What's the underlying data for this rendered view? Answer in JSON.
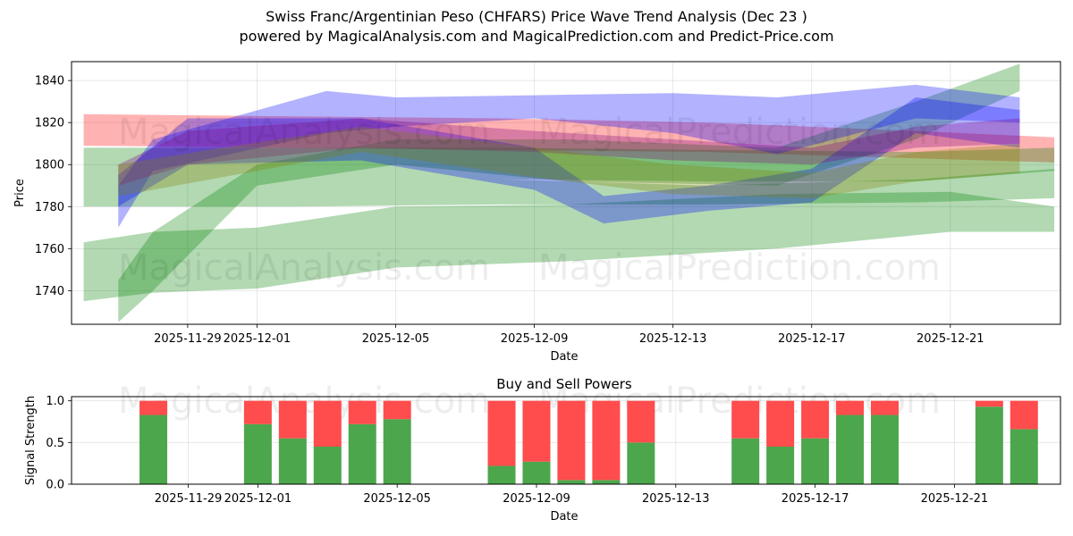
{
  "header": {
    "title_line1": "Swiss Franc/Argentinian Peso (CHFARS) Price Wave Trend Analysis (Dec 23 )",
    "title_line2": "powered by MagicalAnalysis.com and MagicalPrediction.com and Predict-Price.com"
  },
  "watermarks": {
    "magical_analysis": "MagicalAnalysis.com",
    "magical_prediction": "MagicalPrediction.com"
  },
  "chart_data": [
    {
      "type": "area",
      "title": "",
      "xlabel": "Date",
      "ylabel": "Price",
      "x_ticks": [
        "2025-11-29",
        "2025-12-01",
        "2025-12-05",
        "2025-12-09",
        "2025-12-13",
        "2025-12-17",
        "2025-12-21"
      ],
      "y_ticks": [
        1740,
        1760,
        1780,
        1800,
        1820,
        1840
      ],
      "xlim": [
        "2025-11-26",
        "2025-12-24"
      ],
      "ylim": [
        1724,
        1849
      ],
      "grid": true,
      "series": [
        {
          "name": "red band",
          "color": "#ff0000",
          "upper": [
            [
              0,
              1824
            ],
            [
              6,
              1823
            ],
            [
              12,
              1822
            ],
            [
              18,
              1820
            ],
            [
              24,
              1816
            ],
            [
              28,
              1813
            ]
          ],
          "lower": [
            [
              0,
              1809
            ],
            [
              6,
              1808
            ],
            [
              12,
              1807
            ],
            [
              18,
              1806
            ],
            [
              24,
              1803
            ],
            [
              28,
              1801
            ]
          ]
        },
        {
          "name": "green upper band",
          "color": "#008000",
          "upper": [
            [
              0,
              1808
            ],
            [
              6,
              1808
            ],
            [
              12,
              1808
            ],
            [
              18,
              1807
            ],
            [
              24,
              1806
            ],
            [
              28,
              1808
            ]
          ],
          "lower": [
            [
              0,
              1795
            ],
            [
              6,
              1794
            ],
            [
              12,
              1793
            ],
            [
              18,
              1792
            ],
            [
              24,
              1792
            ],
            [
              28,
              1797
            ]
          ]
        },
        {
          "name": "green mid band",
          "color": "#008000",
          "upper": [
            [
              0,
              1795
            ],
            [
              6,
              1794
            ],
            [
              12,
              1793
            ],
            [
              18,
              1790
            ],
            [
              24,
              1793
            ],
            [
              28,
              1798
            ]
          ],
          "lower": [
            [
              0,
              1780
            ],
            [
              6,
              1780
            ],
            [
              12,
              1781
            ],
            [
              18,
              1781
            ],
            [
              24,
              1782
            ],
            [
              28,
              1784
            ]
          ]
        },
        {
          "name": "green lower band",
          "color": "#008000",
          "upper": [
            [
              0,
              1763
            ],
            [
              2,
              1768
            ],
            [
              5,
              1770
            ],
            [
              9,
              1780
            ],
            [
              14,
              1781
            ],
            [
              20,
              1786
            ],
            [
              25,
              1787
            ],
            [
              28,
              1780
            ]
          ],
          "lower": [
            [
              0,
              1735
            ],
            [
              2,
              1739
            ],
            [
              5,
              1741
            ],
            [
              9,
              1751
            ],
            [
              14,
              1754
            ],
            [
              20,
              1760
            ],
            [
              25,
              1768
            ],
            [
              28,
              1768
            ]
          ]
        },
        {
          "name": "green rising wave",
          "color": "#008000",
          "upper": [
            [
              1,
              1745
            ],
            [
              2,
              1768
            ],
            [
              5,
              1800
            ],
            [
              9,
              1812
            ],
            [
              14,
              1812
            ],
            [
              20,
              1808
            ],
            [
              24,
              1830
            ],
            [
              27,
              1848
            ]
          ],
          "lower": [
            [
              1,
              1725
            ],
            [
              2,
              1740
            ],
            [
              5,
              1790
            ],
            [
              9,
              1800
            ],
            [
              14,
              1792
            ],
            [
              20,
              1790
            ],
            [
              24,
              1812
            ],
            [
              27,
              1835
            ]
          ]
        },
        {
          "name": "blue wave",
          "color": "#0000ff",
          "upper": [
            [
              1,
              1790
            ],
            [
              2,
              1812
            ],
            [
              7,
              1835
            ],
            [
              9,
              1832
            ],
            [
              13,
              1833
            ],
            [
              17,
              1834
            ],
            [
              20,
              1832
            ],
            [
              24,
              1838
            ],
            [
              27,
              1832
            ]
          ],
          "lower": [
            [
              1,
              1770
            ],
            [
              2,
              1797
            ],
            [
              7,
              1815
            ],
            [
              9,
              1818
            ],
            [
              13,
              1822
            ],
            [
              17,
              1815
            ],
            [
              20,
              1805
            ],
            [
              24,
              1822
            ],
            [
              27,
              1820
            ]
          ]
        },
        {
          "name": "blue wave 2",
          "color": "#0000ff",
          "upper": [
            [
              1,
              1795
            ],
            [
              3,
              1822
            ],
            [
              8,
              1822
            ],
            [
              13,
              1808
            ],
            [
              15,
              1785
            ],
            [
              18,
              1790
            ],
            [
              21,
              1798
            ],
            [
              24,
              1832
            ],
            [
              27,
              1826
            ]
          ],
          "lower": [
            [
              1,
              1780
            ],
            [
              3,
              1800
            ],
            [
              8,
              1802
            ],
            [
              13,
              1788
            ],
            [
              15,
              1772
            ],
            [
              18,
              1778
            ],
            [
              21,
              1782
            ],
            [
              24,
              1815
            ],
            [
              27,
              1808
            ]
          ]
        },
        {
          "name": "purple wave",
          "color": "#800080",
          "upper": [
            [
              1,
              1800
            ],
            [
              3,
              1816
            ],
            [
              8,
              1822
            ],
            [
              13,
              1816
            ],
            [
              17,
              1812
            ],
            [
              21,
              1808
            ],
            [
              24,
              1818
            ],
            [
              27,
              1822
            ]
          ],
          "lower": [
            [
              1,
              1790
            ],
            [
              3,
              1800
            ],
            [
              8,
              1808
            ],
            [
              13,
              1806
            ],
            [
              17,
              1802
            ],
            [
              21,
              1800
            ],
            [
              24,
              1808
            ],
            [
              27,
              1810
            ]
          ]
        },
        {
          "name": "olive wave",
          "color": "#808000",
          "upper": [
            [
              1,
              1800
            ],
            [
              4,
              1808
            ],
            [
              8,
              1818
            ],
            [
              13,
              1808
            ],
            [
              17,
              1800
            ],
            [
              21,
              1796
            ],
            [
              24,
              1806
            ],
            [
              27,
              1810
            ]
          ],
          "lower": [
            [
              1,
              1785
            ],
            [
              4,
              1794
            ],
            [
              8,
              1806
            ],
            [
              13,
              1794
            ],
            [
              17,
              1786
            ],
            [
              21,
              1784
            ],
            [
              24,
              1792
            ],
            [
              27,
              1796
            ]
          ]
        }
      ]
    },
    {
      "type": "bar",
      "title": "Buy and Sell Powers",
      "xlabel": "Date",
      "ylabel": "Signal Strength",
      "x_ticks": [
        "2025-11-29",
        "2025-12-01",
        "2025-12-05",
        "2025-12-09",
        "2025-12-13",
        "2025-12-17",
        "2025-12-21"
      ],
      "y_ticks": [
        "0.0",
        "0.5",
        "1.0"
      ],
      "ylim": [
        0,
        1.05
      ],
      "grid": true,
      "categories": [
        "2025-11-28",
        "2025-12-01",
        "2025-12-02",
        "2025-12-03",
        "2025-12-04",
        "2025-12-05",
        "2025-12-08",
        "2025-12-09",
        "2025-12-10",
        "2025-12-11",
        "2025-12-12",
        "2025-12-15",
        "2025-12-16",
        "2025-12-17",
        "2025-12-18",
        "2025-12-19",
        "2025-12-22",
        "2025-12-23"
      ],
      "series": [
        {
          "name": "Buy",
          "color": "#4ca64c",
          "values": [
            0.83,
            0.72,
            0.55,
            0.45,
            0.72,
            0.78,
            0.22,
            0.27,
            0.05,
            0.05,
            0.5,
            0.55,
            0.45,
            0.55,
            0.83,
            0.83,
            0.93,
            0.66
          ]
        },
        {
          "name": "Sell",
          "color": "#ff4c4c",
          "values": [
            0.17,
            0.28,
            0.45,
            0.55,
            0.28,
            0.22,
            0.78,
            0.73,
            0.95,
            0.95,
            0.5,
            0.45,
            0.55,
            0.45,
            0.17,
            0.17,
            0.07,
            0.34
          ]
        }
      ]
    }
  ]
}
